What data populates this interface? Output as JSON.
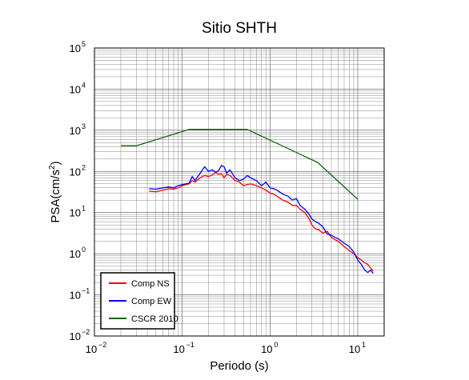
{
  "chart_data": {
    "type": "line",
    "title": "Sitio SHTH",
    "xlabel": "Periodo (s)",
    "ylabel_base": "PSA(cm/s",
    "ylabel_sup": "2",
    "ylabel_close": ")",
    "x_scale": "log",
    "y_scale": "log",
    "xlim": [
      0.01,
      20
    ],
    "ylim": [
      0.01,
      100000
    ],
    "grid": true,
    "legend_position": "bottom-left",
    "x_ticks": [
      {
        "value": 0.01,
        "base": "10",
        "exp": "−2"
      },
      {
        "value": 0.1,
        "base": "10",
        "exp": "−1"
      },
      {
        "value": 1,
        "base": "10",
        "exp": "0"
      },
      {
        "value": 10,
        "base": "10",
        "exp": "1"
      }
    ],
    "y_ticks": [
      {
        "value": 0.01,
        "base": "10",
        "exp": "−2"
      },
      {
        "value": 0.1,
        "base": "10",
        "exp": "−1"
      },
      {
        "value": 1,
        "base": "10",
        "exp": "0"
      },
      {
        "value": 10,
        "base": "10",
        "exp": "1"
      },
      {
        "value": 100,
        "base": "10",
        "exp": "2"
      },
      {
        "value": 1000,
        "base": "10",
        "exp": "3"
      },
      {
        "value": 10000,
        "base": "10",
        "exp": "4"
      },
      {
        "value": 100000,
        "base": "10",
        "exp": "5"
      }
    ],
    "series": [
      {
        "name": "Comp NS",
        "color": "#ff0000",
        "x": [
          0.042,
          0.05,
          0.06,
          0.07,
          0.08,
          0.09,
          0.1,
          0.11,
          0.12,
          0.13,
          0.14,
          0.16,
          0.18,
          0.2,
          0.22,
          0.24,
          0.26,
          0.28,
          0.3,
          0.32,
          0.35,
          0.4,
          0.45,
          0.5,
          0.55,
          0.6,
          0.7,
          0.8,
          0.9,
          1.0,
          1.1,
          1.2,
          1.4,
          1.6,
          1.8,
          2.0,
          2.2,
          2.5,
          2.8,
          3.0,
          3.3,
          3.6,
          4.0,
          4.5,
          5.0,
          5.5,
          6.0,
          7.0,
          8.0,
          9.0,
          10.0,
          11.0,
          12.0,
          13.0,
          14.0,
          15.0
        ],
        "y": [
          33,
          32,
          35,
          38,
          37,
          40,
          45,
          48,
          50,
          60,
          55,
          70,
          80,
          75,
          82,
          95,
          85,
          88,
          70,
          85,
          80,
          60,
          55,
          45,
          48,
          50,
          45,
          40,
          35,
          30,
          28,
          25,
          20,
          18,
          15,
          15,
          12,
          10,
          7,
          5,
          4,
          3.8,
          3.2,
          3.5,
          2.5,
          2.2,
          2.0,
          1.5,
          1.2,
          1.0,
          0.8,
          0.7,
          0.6,
          0.55,
          0.45,
          0.38
        ]
      },
      {
        "name": "Comp EW",
        "color": "#0000ff",
        "x": [
          0.042,
          0.05,
          0.06,
          0.07,
          0.08,
          0.09,
          0.1,
          0.11,
          0.12,
          0.13,
          0.14,
          0.16,
          0.18,
          0.2,
          0.22,
          0.24,
          0.26,
          0.28,
          0.3,
          0.32,
          0.35,
          0.4,
          0.45,
          0.5,
          0.55,
          0.6,
          0.7,
          0.8,
          0.9,
          1.0,
          1.1,
          1.2,
          1.4,
          1.6,
          1.8,
          2.0,
          2.2,
          2.5,
          2.8,
          3.0,
          3.3,
          3.6,
          4.0,
          4.5,
          5.0,
          5.5,
          6.0,
          7.0,
          8.0,
          9.0,
          10.0,
          11.0,
          12.0,
          13.0,
          14.0,
          15.0
        ],
        "y": [
          38,
          37,
          40,
          42,
          40,
          45,
          48,
          50,
          52,
          75,
          60,
          90,
          130,
          100,
          110,
          95,
          105,
          140,
          130,
          90,
          110,
          70,
          60,
          65,
          80,
          70,
          60,
          45,
          55,
          40,
          38,
          35,
          28,
          25,
          20,
          22,
          15,
          12,
          9,
          7,
          6,
          5.5,
          4.5,
          3.0,
          2.8,
          2.5,
          2.3,
          1.8,
          1.5,
          1.1,
          0.7,
          0.55,
          0.4,
          0.35,
          0.4,
          0.33
        ]
      },
      {
        "name": "CSCR 2010",
        "color": "#116611",
        "x": [
          0.02,
          0.03,
          0.12,
          0.55,
          3.5,
          10
        ],
        "y": [
          420,
          420,
          1050,
          1050,
          165,
          21
        ]
      }
    ]
  }
}
